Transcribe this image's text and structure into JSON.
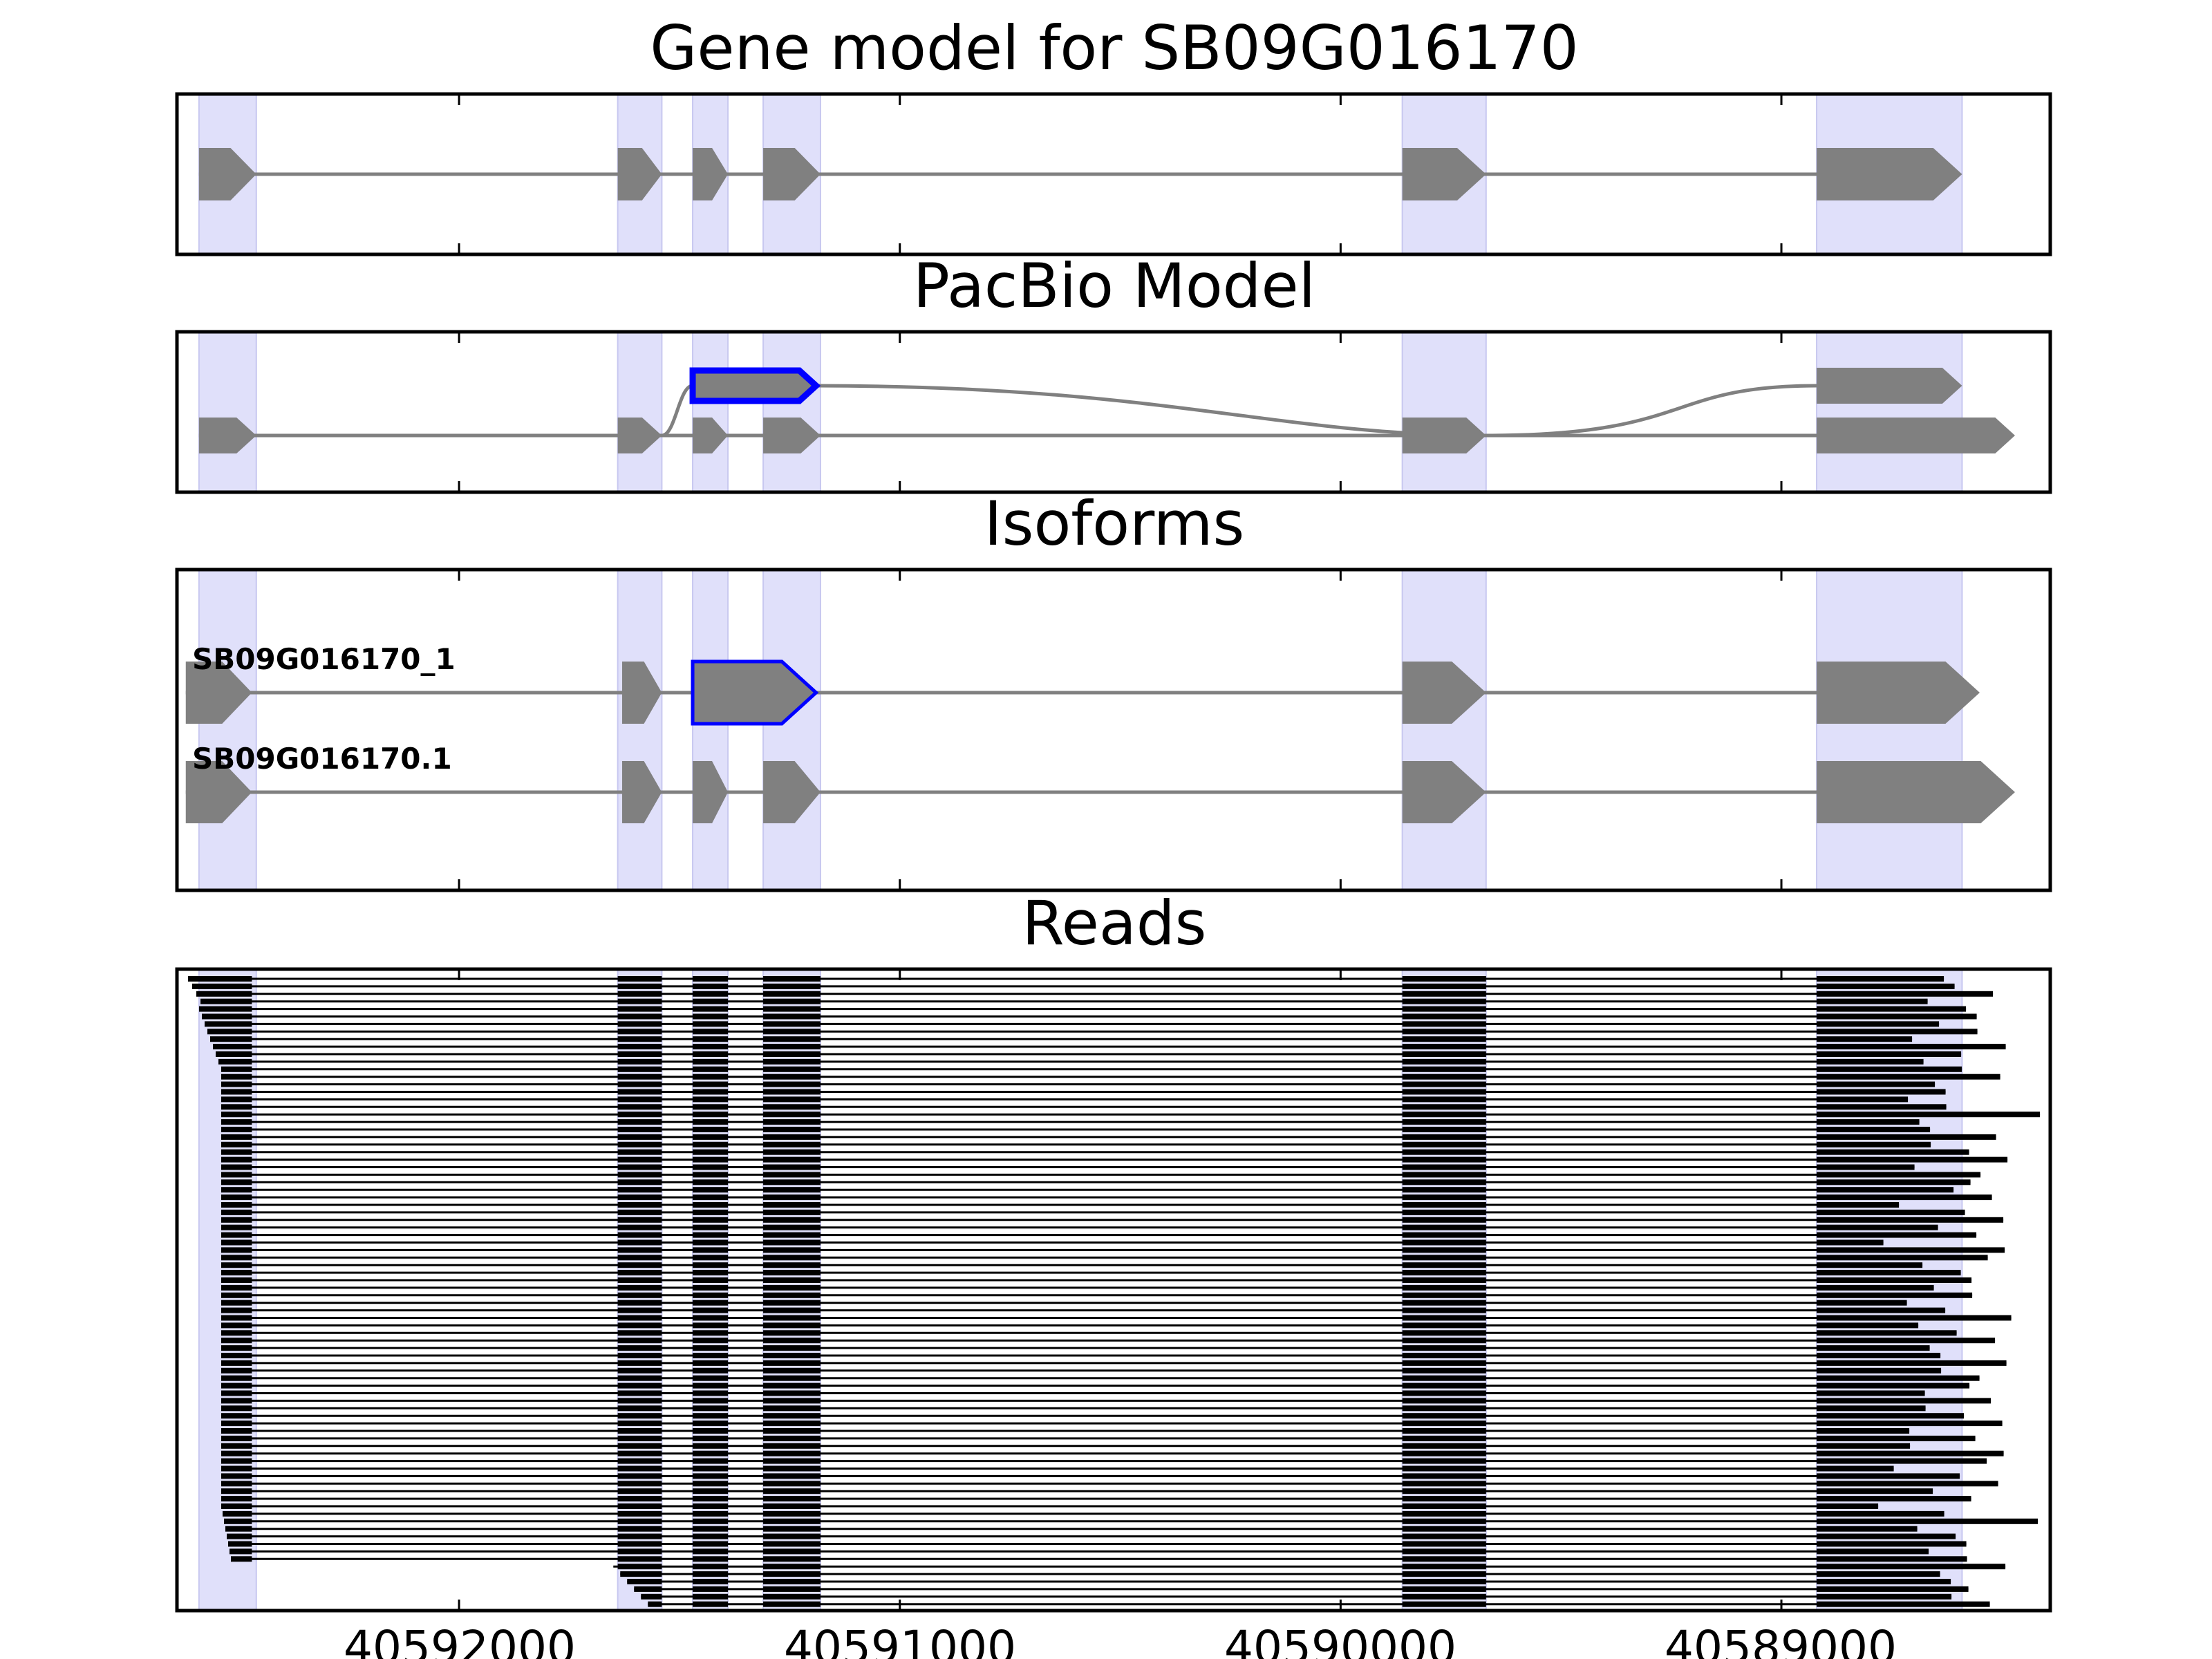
{
  "titles": {
    "gene_model": "Gene model for SB09G016170",
    "pacbio": "PacBio Model",
    "isoforms": "Isoforms",
    "reads": "Reads"
  },
  "isoform_labels": [
    "SB09G016170_1",
    "SB09G016170.1"
  ],
  "x_ticks": [
    {
      "value": 40592000,
      "label": "40592000"
    },
    {
      "value": 40591000,
      "label": "40591000"
    },
    {
      "value": 40590000,
      "label": "40590000"
    },
    {
      "value": 40589000,
      "label": "40589000"
    }
  ],
  "coordinate_axis": {
    "min": 40592640,
    "max": 40588390,
    "direction": "descending"
  },
  "colors": {
    "exon": "#808080",
    "intron": "#808080",
    "highlight_band": "#e0e0fa",
    "selected_exon": "#0000ff",
    "read": "#000000"
  },
  "reference_exons": [
    [
      40592590,
      40592460
    ],
    [
      40591640,
      40591540
    ],
    [
      40591470,
      40591390
    ],
    [
      40591310,
      40591180
    ],
    [
      40589860,
      40589670
    ],
    [
      40588920,
      40588590
    ]
  ],
  "pacbio_model": {
    "main_exons": [
      [
        40592590,
        40592460
      ],
      [
        40591640,
        40591540
      ],
      [
        40591470,
        40591390
      ],
      [
        40591310,
        40591180
      ],
      [
        40589860,
        40589670
      ],
      [
        40588920,
        40588470
      ]
    ],
    "alternative_exons": [
      [
        40591470,
        40591190
      ],
      [
        40588920,
        40588590
      ]
    ],
    "selected_exon": [
      40591470,
      40591190
    ]
  },
  "isoforms": [
    {
      "name": "SB09G016170_1",
      "exons": [
        [
          40592620,
          40592470
        ],
        [
          40591630,
          40591540
        ],
        [
          40591470,
          40591190
        ],
        [
          40589860,
          40589670
        ],
        [
          40588920,
          40588550
        ]
      ],
      "selected_exon": [
        40591470,
        40591190
      ]
    },
    {
      "name": "SB09G016170.1",
      "exons": [
        [
          40592620,
          40592470
        ],
        [
          40591630,
          40591540
        ],
        [
          40591470,
          40591390
        ],
        [
          40591310,
          40591180
        ],
        [
          40589860,
          40589670
        ],
        [
          40588920,
          40588470
        ]
      ],
      "selected_exon": null
    }
  ],
  "reads": {
    "count": 84,
    "inner_exons": [
      [
        40591640,
        40591540
      ],
      [
        40591470,
        40591390
      ],
      [
        40591310,
        40591180
      ],
      [
        40589860,
        40589670
      ]
    ],
    "last_exon_start": 40588920
  }
}
